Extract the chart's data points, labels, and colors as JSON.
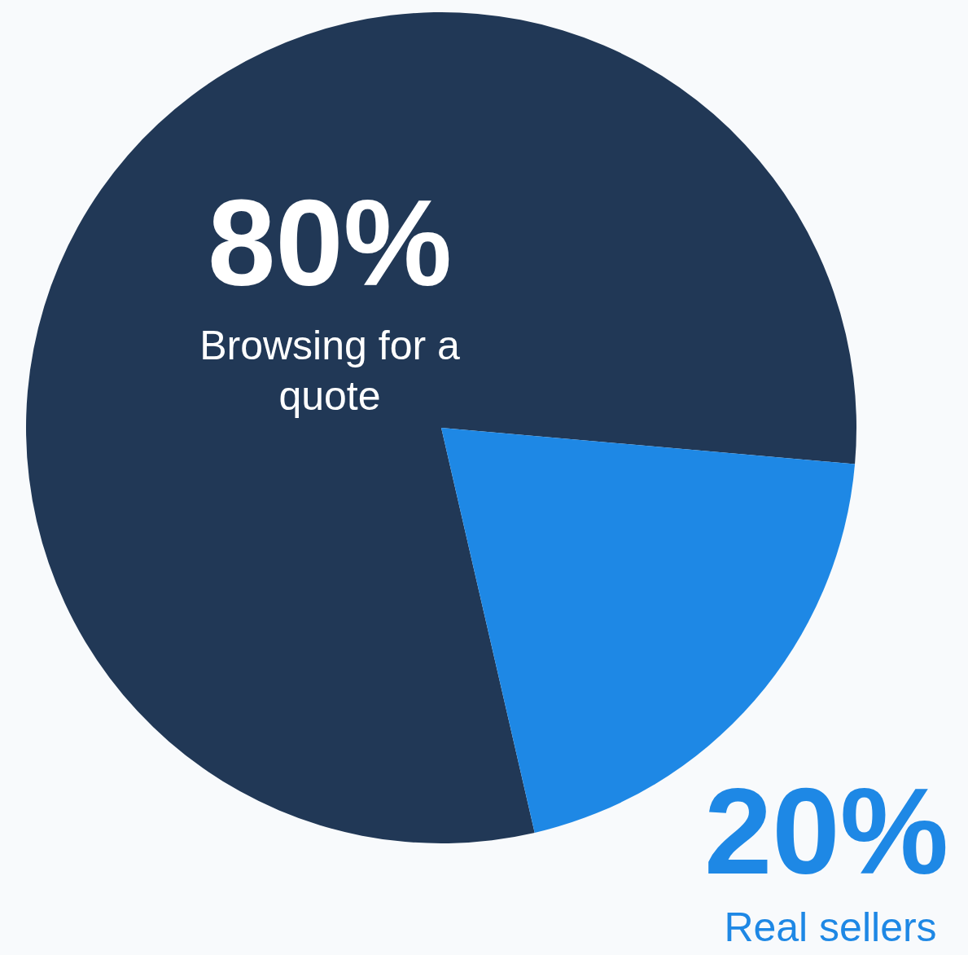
{
  "chart_data": {
    "type": "pie",
    "categories": [
      "Browsing for a quote",
      "Real sellers"
    ],
    "values": [
      80,
      20
    ],
    "colors": [
      "#213856",
      "#1e88e5"
    ],
    "value_labels": [
      "80%",
      "20%"
    ]
  }
}
